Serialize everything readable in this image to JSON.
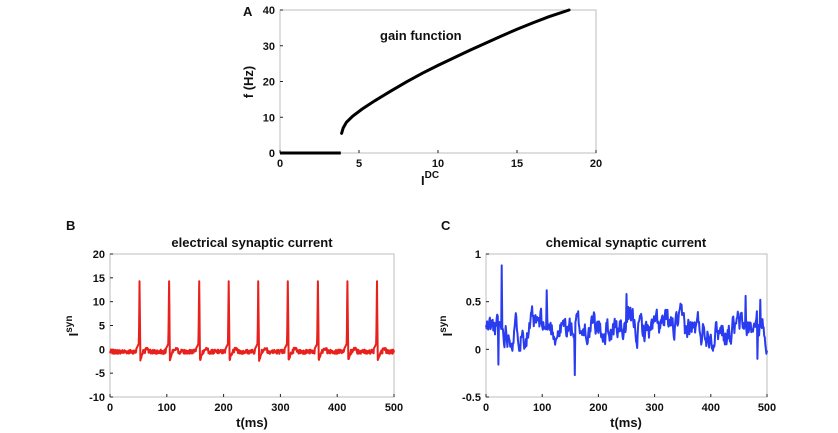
{
  "chart_data": [
    {
      "panel": "A",
      "type": "line",
      "title": "gain function",
      "xlabel": "I",
      "xlabel_sup": "DC",
      "ylabel": "f (Hz)",
      "xlim": [
        0,
        20
      ],
      "ylim": [
        0,
        40
      ],
      "xticks": [
        0,
        5,
        10,
        15,
        20
      ],
      "yticks": [
        0,
        10,
        20,
        30,
        40
      ],
      "color": "#000000",
      "series": [
        {
          "x": [
            0,
            3.85
          ],
          "y": [
            0,
            0
          ]
        },
        {
          "x": [
            3.9,
            4.0,
            4.2,
            4.6,
            5.2,
            6,
            7,
            8,
            9,
            10,
            11,
            12,
            13,
            14,
            15,
            16,
            17,
            18.3
          ],
          "y": [
            5.5,
            7,
            8.6,
            10.3,
            12.3,
            14.6,
            17.3,
            19.9,
            22.3,
            24.5,
            26.6,
            28.7,
            30.7,
            32.7,
            34.6,
            36.4,
            38.1,
            40
          ]
        }
      ]
    },
    {
      "panel": "B",
      "type": "line",
      "title": "electrical synaptic current",
      "xlabel": "t(ms)",
      "ylabel": "I",
      "ylabel_sup": "syn",
      "xlim": [
        0,
        500
      ],
      "ylim": [
        -10,
        20
      ],
      "xticks": [
        0,
        100,
        200,
        300,
        400,
        500
      ],
      "yticks": [
        20,
        15,
        10,
        5,
        0,
        -5,
        -10
      ],
      "color": "#e8211d",
      "baseline": -0.5,
      "spike_peak": 14.3,
      "spike_times": [
        52,
        104,
        157,
        209,
        261,
        313,
        366,
        418,
        470
      ]
    },
    {
      "panel": "C",
      "type": "line",
      "title": "chemical synaptic current",
      "xlabel": "t(ms)",
      "ylabel": "I",
      "ylabel_sup": "syn",
      "xlim": [
        0,
        500
      ],
      "ylim": [
        -0.5,
        1
      ],
      "xticks": [
        0,
        100,
        200,
        300,
        400,
        500
      ],
      "yticks": [
        1,
        0.5,
        0,
        -0.5
      ],
      "color": "#2a3cf0",
      "mean": 0.22,
      "range_observed": [
        -0.27,
        0.88
      ]
    }
  ]
}
